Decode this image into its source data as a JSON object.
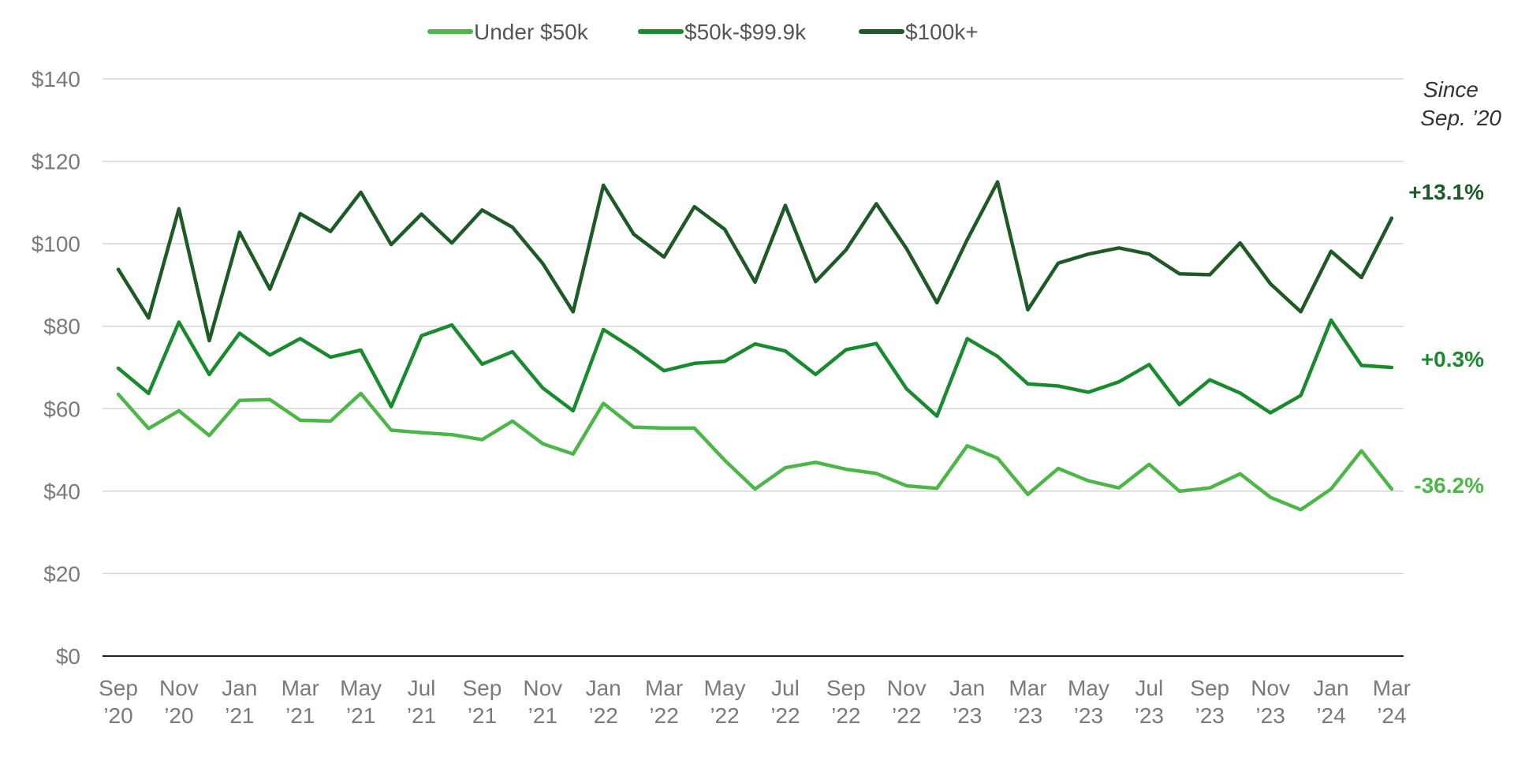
{
  "chart_data": {
    "type": "line",
    "title": "",
    "xlabel": "",
    "ylabel": "",
    "ylim": [
      0,
      140
    ],
    "y_ticks": [
      "$0",
      "$20",
      "$40",
      "$60",
      "$80",
      "$100",
      "$120",
      "$140"
    ],
    "y_tick_values": [
      0,
      20,
      40,
      60,
      80,
      100,
      120,
      140
    ],
    "grid": true,
    "legend_position": "top-center",
    "x": [
      "Sep '20",
      "Oct '20",
      "Nov '20",
      "Dec '20",
      "Jan '21",
      "Feb '21",
      "Mar '21",
      "Apr '21",
      "May '21",
      "Jun '21",
      "Jul '21",
      "Aug '21",
      "Sep '21",
      "Oct '21",
      "Nov '21",
      "Dec '21",
      "Jan '22",
      "Feb '22",
      "Mar '22",
      "Apr '22",
      "May '22",
      "Jun '22",
      "Jul '22",
      "Aug '22",
      "Sep '22",
      "Oct '22",
      "Nov '22",
      "Dec '22",
      "Jan '23",
      "Feb '23",
      "Mar '23",
      "Apr '23",
      "May '23",
      "Jun '23",
      "Jul '23",
      "Aug '23",
      "Sep '23",
      "Oct '23",
      "Nov '23",
      "Dec '23",
      "Jan '24",
      "Feb '24",
      "Mar '24"
    ],
    "x_tick_labels": [
      {
        "line1": "Sep",
        "line2": "’20"
      },
      {
        "line1": "Nov",
        "line2": "’20"
      },
      {
        "line1": "Jan",
        "line2": "’21"
      },
      {
        "line1": "Mar",
        "line2": "’21"
      },
      {
        "line1": "May",
        "line2": "’21"
      },
      {
        "line1": "Jul",
        "line2": "’21"
      },
      {
        "line1": "Sep",
        "line2": "’21"
      },
      {
        "line1": "Nov",
        "line2": "’21"
      },
      {
        "line1": "Jan",
        "line2": "’22"
      },
      {
        "line1": "Mar",
        "line2": "’22"
      },
      {
        "line1": "May",
        "line2": "’22"
      },
      {
        "line1": "Jul",
        "line2": "’22"
      },
      {
        "line1": "Sep",
        "line2": "’22"
      },
      {
        "line1": "Nov",
        "line2": "’22"
      },
      {
        "line1": "Jan",
        "line2": "’23"
      },
      {
        "line1": "Mar",
        "line2": "’23"
      },
      {
        "line1": "May",
        "line2": "’23"
      },
      {
        "line1": "Jul",
        "line2": "’23"
      },
      {
        "line1": "Sep",
        "line2": "’23"
      },
      {
        "line1": "Nov",
        "line2": "’23"
      },
      {
        "line1": "Jan",
        "line2": "’24"
      },
      {
        "line1": "Mar",
        "line2": "’24"
      }
    ],
    "series": [
      {
        "name": "Under $50k",
        "color": "#4cb648",
        "end_label": "-36.2%",
        "values": [
          63.5,
          55.2,
          59.5,
          53.5,
          62.0,
          62.2,
          57.2,
          57.0,
          63.7,
          54.8,
          54.2,
          53.7,
          52.5,
          57.0,
          51.5,
          49.0,
          61.3,
          55.5,
          55.3,
          55.3,
          47.5,
          40.5,
          45.7,
          47.0,
          45.3,
          44.3,
          41.3,
          40.7,
          51.0,
          48.0,
          39.2,
          45.5,
          42.5,
          40.8,
          46.5,
          40.0,
          40.8,
          44.2,
          38.5,
          35.5,
          40.5,
          49.8,
          40.5
        ]
      },
      {
        "name": "$50k-$99.9k",
        "color": "#1a8a2e",
        "end_label": "+0.3%",
        "values": [
          69.8,
          63.7,
          81.0,
          68.3,
          78.3,
          73.0,
          77.0,
          72.5,
          74.2,
          60.5,
          77.7,
          80.3,
          70.8,
          73.8,
          65.0,
          59.5,
          79.2,
          74.5,
          69.2,
          71.0,
          71.5,
          75.7,
          74.0,
          68.3,
          74.3,
          75.8,
          64.8,
          58.2,
          77.0,
          72.7,
          66.0,
          65.5,
          64.0,
          66.5,
          70.7,
          61.0,
          67.0,
          63.8,
          59.0,
          63.2,
          81.5,
          70.5,
          70.0
        ]
      },
      {
        "name": "$100k+",
        "color": "#1d5a25",
        "end_label": "+13.1%",
        "values": [
          93.8,
          82.0,
          108.5,
          76.5,
          102.8,
          89.0,
          107.3,
          103.0,
          112.5,
          99.8,
          107.2,
          100.2,
          108.2,
          104.0,
          95.2,
          83.5,
          114.2,
          102.3,
          96.8,
          109.0,
          103.5,
          90.7,
          109.3,
          90.8,
          98.5,
          109.7,
          98.8,
          85.7,
          101.0,
          115.0,
          84.0,
          95.3,
          97.5,
          99.0,
          97.5,
          92.7,
          92.5,
          100.2,
          90.3,
          83.5,
          98.2,
          91.8,
          106.2
        ]
      }
    ],
    "annotation": {
      "line1": "Since",
      "line2": "Sep. ’20"
    }
  }
}
